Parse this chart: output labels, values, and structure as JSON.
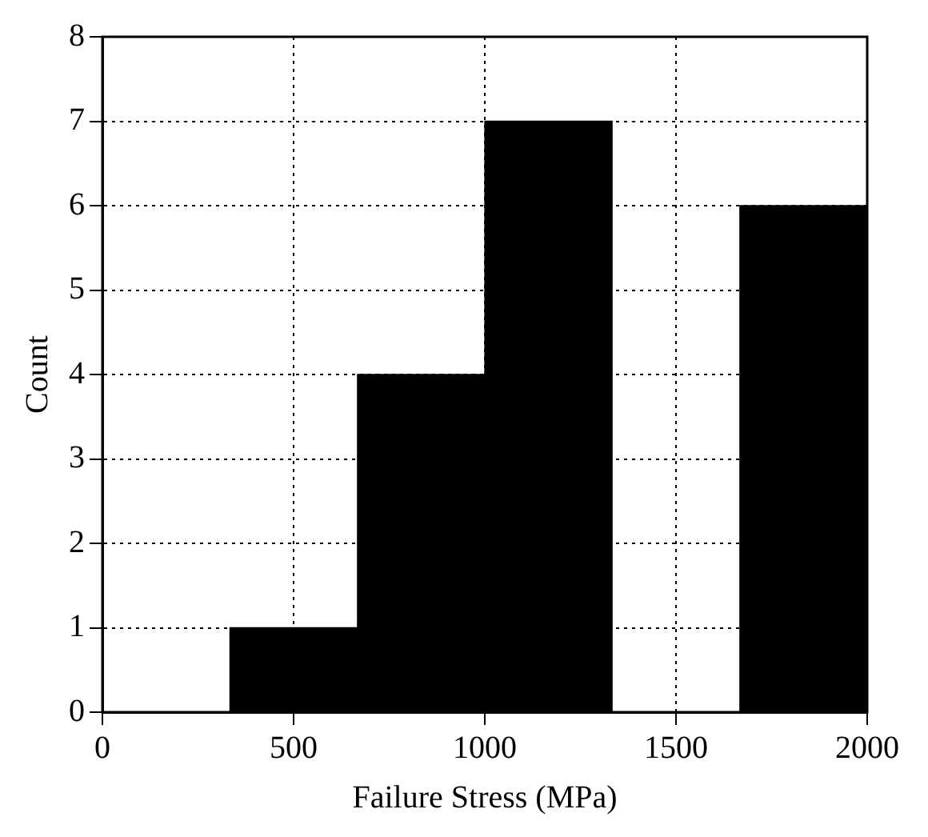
{
  "chart_data": {
    "type": "histogram",
    "xlabel": "Failure Stress (MPa)",
    "ylabel": "Count",
    "bins": [
      333,
      667,
      1000,
      1333,
      1667,
      2000
    ],
    "values": [
      1,
      4,
      7,
      0,
      6
    ],
    "color": "#000000",
    "xlim": [
      0,
      2000
    ],
    "xticks": [
      0,
      500,
      1000,
      1500,
      2000
    ],
    "ylim": [
      0,
      8
    ],
    "yticks": [
      0,
      1,
      2,
      3,
      4,
      5,
      6,
      7,
      8
    ],
    "grid": true
  }
}
